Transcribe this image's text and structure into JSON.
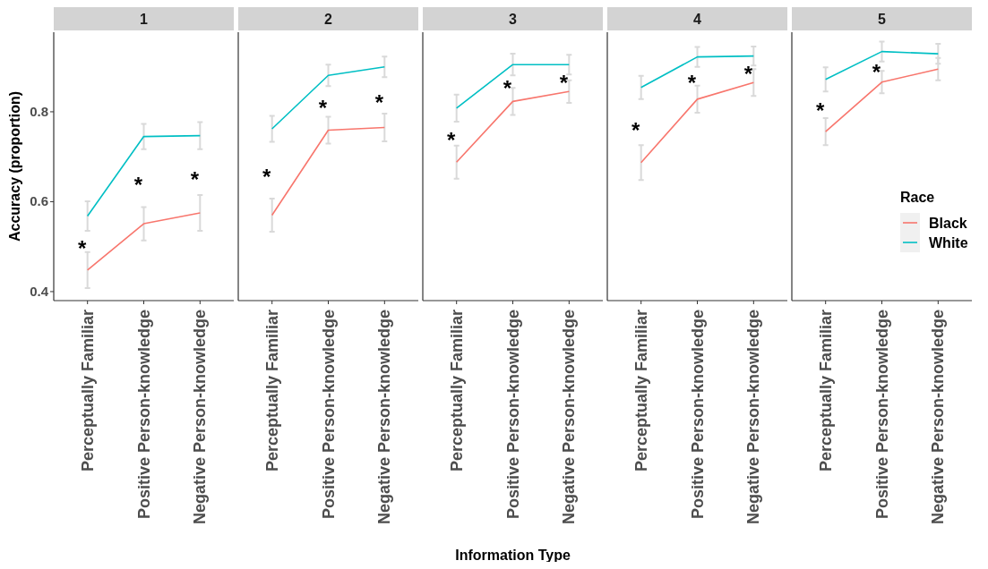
{
  "chart_data": [
    {
      "type": "line",
      "title": "1",
      "ylabel": "Accuracy (proportion)",
      "categories": [
        "Perceptually Familiar",
        "Positive Person-knowledge",
        "Negative Person-knowledge"
      ],
      "ylim": [
        0.38,
        0.977
      ],
      "yticks": [
        0.4,
        0.6,
        0.8
      ],
      "grid": false,
      "legend": false,
      "series": [
        {
          "color": "#f8766d",
          "values": [
            0.448,
            0.551,
            0.575
          ],
          "errors": [
            0.04,
            0.037,
            0.04
          ]
        },
        {
          "color": "#00bfc4",
          "values": [
            0.568,
            0.745,
            0.747
          ],
          "errors": [
            0.033,
            0.028,
            0.03
          ]
        }
      ],
      "annotations": [
        "*",
        "*",
        "*"
      ]
    },
    {
      "type": "line",
      "title": "2",
      "categories": [
        "Perceptually Familiar",
        "Positive Person-knowledge",
        "Negative Person-knowledge"
      ],
      "ylim": [
        0.38,
        0.977
      ],
      "tick_labels": "x",
      "grid": false,
      "legend": false,
      "series": [
        {
          "color": "#f8766d",
          "values": [
            0.57,
            0.759,
            0.765
          ],
          "errors": [
            0.037,
            0.03,
            0.031
          ]
        },
        {
          "color": "#00bfc4",
          "values": [
            0.762,
            0.881,
            0.9
          ],
          "errors": [
            0.029,
            0.024,
            0.023
          ]
        }
      ],
      "annotations": [
        "*",
        "*",
        "*"
      ]
    },
    {
      "type": "line",
      "title": "3",
      "xlabel": "Information Type",
      "categories": [
        "Perceptually Familiar",
        "Positive Person-knowledge",
        "Negative Person-knowledge"
      ],
      "ylim": [
        0.38,
        0.977
      ],
      "tick_labels": "x",
      "grid": false,
      "legend": false,
      "series": [
        {
          "color": "#f8766d",
          "values": [
            0.688,
            0.823,
            0.845
          ],
          "errors": [
            0.037,
            0.03,
            0.025
          ]
        },
        {
          "color": "#00bfc4",
          "values": [
            0.808,
            0.905,
            0.905
          ],
          "errors": [
            0.03,
            0.024,
            0.022
          ]
        }
      ],
      "annotations": [
        "*",
        "*",
        "*"
      ]
    },
    {
      "type": "line",
      "title": "4",
      "categories": [
        "Perceptually Familiar",
        "Positive Person-knowledge",
        "Negative Person-knowledge"
      ],
      "ylim": [
        0.38,
        0.977
      ],
      "tick_labels": "x",
      "grid": false,
      "legend": false,
      "series": [
        {
          "color": "#f8766d",
          "values": [
            0.687,
            0.828,
            0.865
          ],
          "errors": [
            0.039,
            0.03,
            0.03
          ]
        },
        {
          "color": "#00bfc4",
          "values": [
            0.854,
            0.922,
            0.924
          ],
          "errors": [
            0.026,
            0.022,
            0.021
          ]
        }
      ],
      "annotations": [
        "*",
        "*",
        "*"
      ]
    },
    {
      "type": "line",
      "title": "5",
      "categories": [
        "Perceptually Familiar",
        "Positive Person-knowledge",
        "Negative Person-knowledge"
      ],
      "ylim": [
        0.38,
        0.977
      ],
      "tick_labels": "x",
      "grid": false,
      "legend": "bottom right",
      "legend_title": "Race",
      "series": [
        {
          "name": "Black",
          "color": "#f8766d",
          "values": [
            0.756,
            0.866,
            0.895
          ],
          "errors": [
            0.03,
            0.025,
            0.025
          ]
        },
        {
          "name": "White",
          "color": "#00bfc4",
          "values": [
            0.872,
            0.934,
            0.929
          ],
          "errors": [
            0.027,
            0.022,
            0.022
          ]
        }
      ],
      "annotations": [
        "*",
        "*"
      ]
    }
  ]
}
